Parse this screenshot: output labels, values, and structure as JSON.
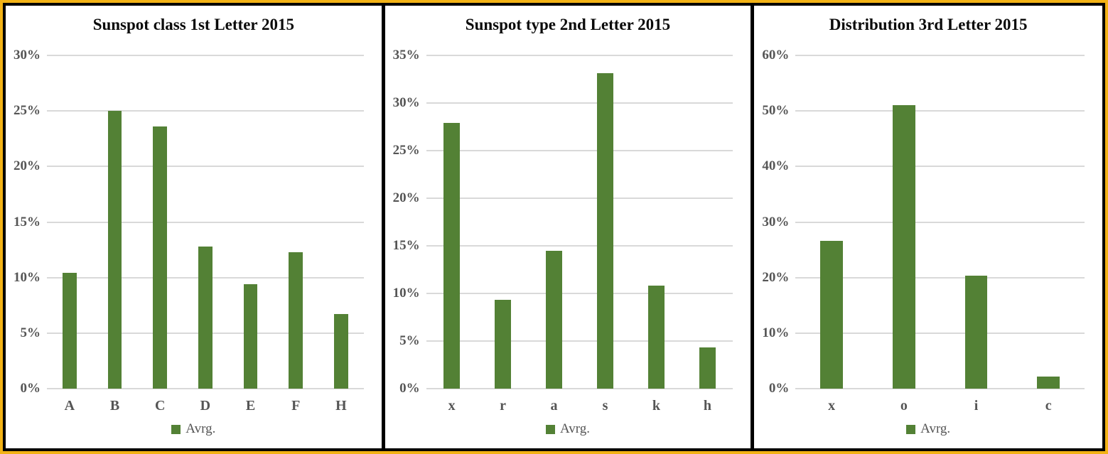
{
  "colors": {
    "frame_border": "#F2B216",
    "panel_border": "#000000",
    "bar": "#538135",
    "gridline": "#D9D9D9",
    "axis_text": "#555555",
    "title_text": "#0a0a0a"
  },
  "chart_data": [
    {
      "type": "bar",
      "title": "Sunspot class 1st Letter 2015",
      "categories": [
        "A",
        "B",
        "C",
        "D",
        "E",
        "F",
        "H"
      ],
      "series": [
        {
          "name": "Avrg.",
          "values": [
            10.4,
            25.0,
            23.6,
            12.8,
            9.4,
            12.3,
            6.7
          ]
        }
      ],
      "xlabel": "",
      "ylabel": "",
      "ylim": [
        0,
        30
      ],
      "ytick_step": 5,
      "ytick_labels": [
        "0%",
        "5%",
        "10%",
        "15%",
        "20%",
        "25%",
        "30%"
      ],
      "grid": true,
      "legend_position": "bottom"
    },
    {
      "type": "bar",
      "title": "Sunspot type 2nd Letter 2015",
      "categories": [
        "x",
        "r",
        "a",
        "s",
        "k",
        "h"
      ],
      "series": [
        {
          "name": "Avrg.",
          "values": [
            27.9,
            9.3,
            14.5,
            33.1,
            10.8,
            4.3
          ]
        }
      ],
      "xlabel": "",
      "ylabel": "",
      "ylim": [
        0,
        35
      ],
      "ytick_step": 5,
      "ytick_labels": [
        "0%",
        "5%",
        "10%",
        "15%",
        "20%",
        "25%",
        "30%",
        "35%"
      ],
      "grid": true,
      "legend_position": "bottom"
    },
    {
      "type": "bar",
      "title": "Distribution 3rd Letter 2015",
      "categories": [
        "x",
        "o",
        "i",
        "c"
      ],
      "series": [
        {
          "name": "Avrg.",
          "values": [
            26.6,
            51.0,
            20.3,
            2.2
          ]
        }
      ],
      "xlabel": "",
      "ylabel": "",
      "ylim": [
        0,
        60
      ],
      "ytick_step": 10,
      "ytick_labels": [
        "0%",
        "10%",
        "20%",
        "30%",
        "40%",
        "50%",
        "60%"
      ],
      "grid": true,
      "legend_position": "bottom"
    }
  ]
}
